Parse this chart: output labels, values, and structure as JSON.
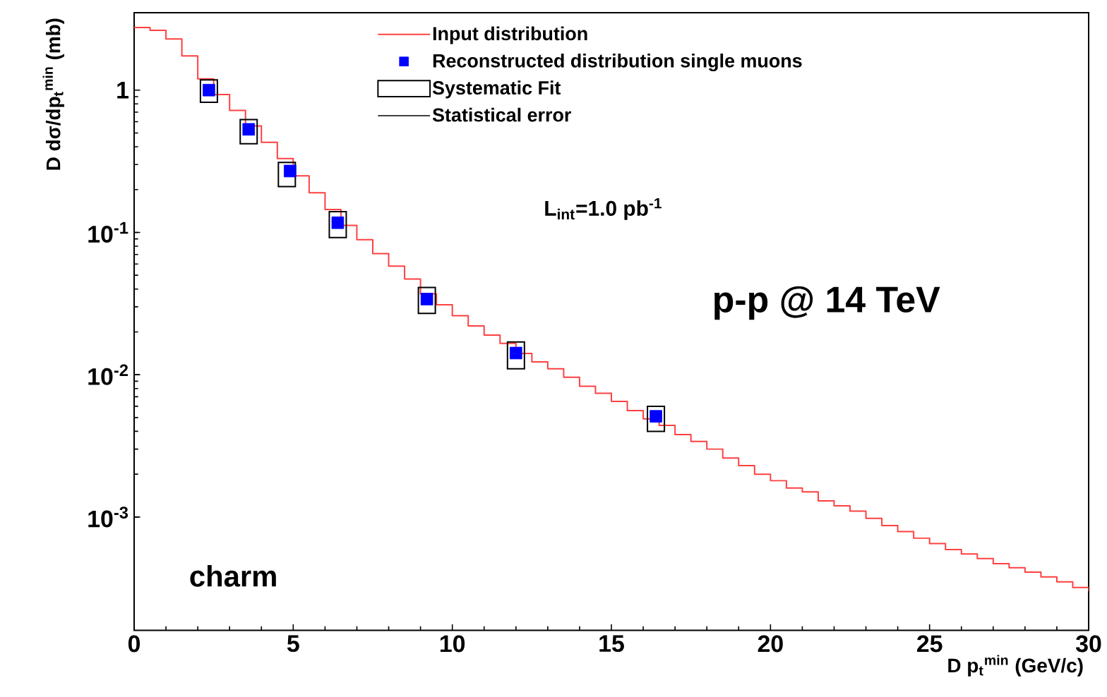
{
  "chart_data": {
    "type": "scatter",
    "xlabel": "D p$_{t}$$^{min}$ (GeV/c)",
    "ylabel": "D dσ/dp$_{t}$$^{min}$ (mb)",
    "annotations": [
      "Statistical error",
      "L$_{int}$=1.0 pb$^{-1}$",
      "p-p @ 14 TeV",
      "charm"
    ],
    "xlim": [
      0,
      30
    ],
    "xticks": [
      0,
      5,
      10,
      15,
      20,
      25,
      30
    ],
    "ylim": [
      0.00016,
      3.5
    ],
    "yticks": [
      {
        "value": 0.001,
        "label": "10$^{-3}$"
      },
      {
        "value": 0.01,
        "label": "10$^{-2}$"
      },
      {
        "value": 0.1,
        "label": "10$^{-1}$"
      },
      1
    ],
    "log": "y",
    "legend": "top right",
    "series": [
      {
        "name": "Input distribution",
        "type": "step",
        "color": "#ff4040",
        "x": [
          0,
          0.5,
          1,
          1.5,
          2,
          2.5,
          3,
          3.5,
          4,
          4.5,
          5,
          5.5,
          6,
          6.5,
          7,
          7.5,
          8,
          8.5,
          9,
          9.5,
          10,
          10.5,
          11,
          11.5,
          12,
          12.5,
          13,
          13.5,
          14,
          14.5,
          15,
          15.5,
          16,
          16.5,
          17,
          17.5,
          18,
          18.5,
          19,
          19.5,
          20,
          20.5,
          21,
          21.5,
          22,
          22.5,
          23,
          23.5,
          24,
          24.5,
          25,
          25.5,
          26,
          26.5,
          27,
          27.5,
          28,
          28.5,
          29,
          29.5,
          30
        ],
        "values": [
          2.75,
          2.63,
          2.29,
          1.74,
          1.2,
          0.93,
          0.72,
          0.56,
          0.43,
          0.33,
          0.25,
          0.19,
          0.145,
          0.112,
          0.089,
          0.071,
          0.058,
          0.047,
          0.037,
          0.031,
          0.026,
          0.022,
          0.019,
          0.0166,
          0.0141,
          0.0123,
          0.011,
          0.0096,
          0.0083,
          0.0074,
          0.0065,
          0.0056,
          0.0049,
          0.0044,
          0.0038,
          0.0034,
          0.003,
          0.0026,
          0.0023,
          0.002,
          0.0018,
          0.0016,
          0.0015,
          0.0013,
          0.0012,
          0.0011,
          0.00098,
          0.00087,
          0.00079,
          0.00071,
          0.00065,
          0.00059,
          0.00055,
          0.00051,
          0.00047,
          0.00044,
          0.00041,
          0.00038,
          0.00035,
          0.00032,
          0.0003
        ]
      },
      {
        "name": "Reconstructed distribution single muons",
        "marker": "square",
        "color": "#0000ff",
        "x": [
          2.35,
          3.6,
          4.9,
          6.4,
          9.2,
          12.0,
          16.4
        ],
        "values": [
          1.0,
          0.53,
          0.27,
          0.117,
          0.034,
          0.0142,
          0.0051
        ],
        "errors": [
          [
            0.97,
            1.03
          ],
          [
            0.51,
            0.55
          ],
          [
            0.26,
            0.28
          ],
          null,
          null,
          null,
          null
        ]
      },
      {
        "name": "Systematic Fit",
        "type": "bar",
        "color": "#000000",
        "x": [
          2.35,
          3.6,
          4.8,
          6.4,
          9.2,
          12.0,
          16.4
        ],
        "base": [
          0.82,
          0.42,
          0.21,
          0.092,
          0.027,
          0.011,
          0.004
        ],
        "values": [
          0.36,
          0.2,
          0.1,
          0.048,
          0.014,
          0.006,
          0.002
        ]
      }
    ]
  }
}
